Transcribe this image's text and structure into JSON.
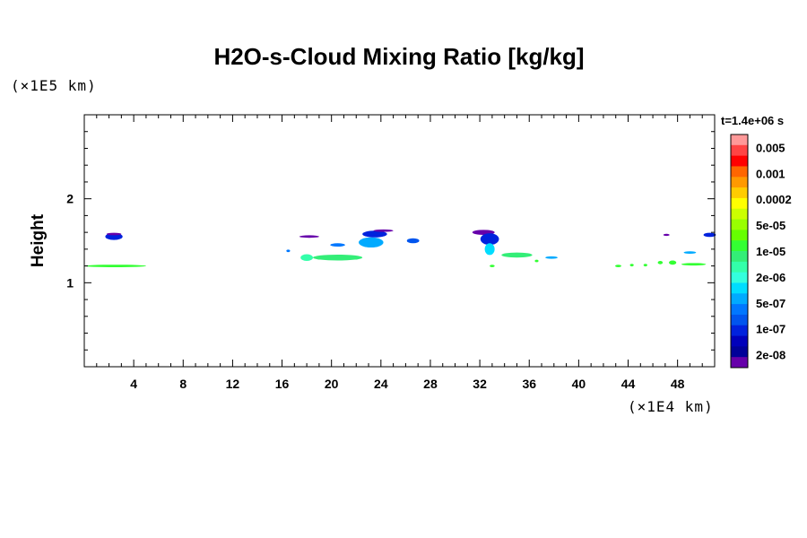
{
  "chart_data": {
    "type": "heatmap",
    "title": "H2O-s-Cloud Mixing Ratio [kg/kg]",
    "xlabel": "",
    "ylabel": "Height",
    "x_unit_label": "(×1E4 km)",
    "y_unit_label": "(×1E5 km)",
    "time_label": "t=1.4e+06 s",
    "xlim": [
      0,
      51
    ],
    "ylim": [
      0,
      3
    ],
    "x_ticks": [
      "4",
      "8",
      "12",
      "16",
      "20",
      "24",
      "28",
      "32",
      "36",
      "40",
      "44",
      "48"
    ],
    "x_tick_values": [
      4,
      8,
      12,
      16,
      20,
      24,
      28,
      32,
      36,
      40,
      44,
      48
    ],
    "y_ticks": [
      "1",
      "2"
    ],
    "y_tick_values": [
      1,
      2
    ],
    "colorbar": {
      "labels": [
        "0.005",
        "0.001",
        "0.0002",
        "5e-05",
        "1e-05",
        "2e-06",
        "5e-07",
        "1e-07",
        "2e-08"
      ],
      "colors": [
        "#ff9999",
        "#ff4444",
        "#ff0000",
        "#ff6600",
        "#ff9900",
        "#ffcc00",
        "#ffff00",
        "#ccff00",
        "#99ff00",
        "#66ff00",
        "#33ff33",
        "#33ee77",
        "#33ffaa",
        "#33ffdd",
        "#00ddff",
        "#00aaff",
        "#0077ff",
        "#0055ee",
        "#0022dd",
        "#0000bb",
        "#000099",
        "#6600aa"
      ]
    },
    "cloud_features": [
      {
        "x": 2.4,
        "y": 1.55,
        "w": 1.4,
        "h": 0.08,
        "color": "#0022dd"
      },
      {
        "x": 2.4,
        "y": 1.58,
        "w": 1.2,
        "h": 0.03,
        "color": "#6600aa"
      },
      {
        "x": 2.5,
        "y": 1.2,
        "w": 5.0,
        "h": 0.03,
        "color": "#33ff33"
      },
      {
        "x": 18.2,
        "y": 1.55,
        "w": 1.6,
        "h": 0.03,
        "color": "#6600aa"
      },
      {
        "x": 16.5,
        "y": 1.38,
        "w": 0.3,
        "h": 0.03,
        "color": "#0077ff"
      },
      {
        "x": 18.0,
        "y": 1.3,
        "w": 1.0,
        "h": 0.08,
        "color": "#33ffaa"
      },
      {
        "x": 20.5,
        "y": 1.3,
        "w": 4.0,
        "h": 0.07,
        "color": "#33ee77"
      },
      {
        "x": 23.2,
        "y": 1.48,
        "w": 2.0,
        "h": 0.12,
        "color": "#00aaff"
      },
      {
        "x": 23.5,
        "y": 1.58,
        "w": 2.0,
        "h": 0.08,
        "color": "#0022dd"
      },
      {
        "x": 24.2,
        "y": 1.62,
        "w": 1.6,
        "h": 0.03,
        "color": "#6600aa"
      },
      {
        "x": 20.5,
        "y": 1.45,
        "w": 1.2,
        "h": 0.04,
        "color": "#0077ff"
      },
      {
        "x": 26.6,
        "y": 1.5,
        "w": 1.0,
        "h": 0.06,
        "color": "#0055ee"
      },
      {
        "x": 32.3,
        "y": 1.6,
        "w": 1.8,
        "h": 0.06,
        "color": "#6600aa"
      },
      {
        "x": 32.8,
        "y": 1.52,
        "w": 1.5,
        "h": 0.14,
        "color": "#0022dd"
      },
      {
        "x": 32.8,
        "y": 1.4,
        "w": 0.8,
        "h": 0.14,
        "color": "#00ddff"
      },
      {
        "x": 35.0,
        "y": 1.33,
        "w": 2.5,
        "h": 0.06,
        "color": "#33ee77"
      },
      {
        "x": 37.8,
        "y": 1.3,
        "w": 1.0,
        "h": 0.03,
        "color": "#00aaff"
      },
      {
        "x": 33.0,
        "y": 1.2,
        "w": 0.4,
        "h": 0.03,
        "color": "#33ff33"
      },
      {
        "x": 36.6,
        "y": 1.26,
        "w": 0.3,
        "h": 0.03,
        "color": "#33ff33"
      },
      {
        "x": 43.2,
        "y": 1.2,
        "w": 0.5,
        "h": 0.03,
        "color": "#33ff33"
      },
      {
        "x": 44.3,
        "y": 1.21,
        "w": 0.3,
        "h": 0.03,
        "color": "#33ff33"
      },
      {
        "x": 45.4,
        "y": 1.21,
        "w": 0.3,
        "h": 0.03,
        "color": "#33ff33"
      },
      {
        "x": 46.6,
        "y": 1.24,
        "w": 0.4,
        "h": 0.04,
        "color": "#33ff33"
      },
      {
        "x": 47.6,
        "y": 1.24,
        "w": 0.6,
        "h": 0.05,
        "color": "#33ff33"
      },
      {
        "x": 49.3,
        "y": 1.22,
        "w": 2.0,
        "h": 0.03,
        "color": "#33ff33"
      },
      {
        "x": 49.0,
        "y": 1.36,
        "w": 1.0,
        "h": 0.03,
        "color": "#00aaff"
      },
      {
        "x": 47.1,
        "y": 1.57,
        "w": 0.5,
        "h": 0.02,
        "color": "#6600aa"
      },
      {
        "x": 50.6,
        "y": 1.57,
        "w": 1.0,
        "h": 0.05,
        "color": "#0022dd"
      }
    ]
  }
}
